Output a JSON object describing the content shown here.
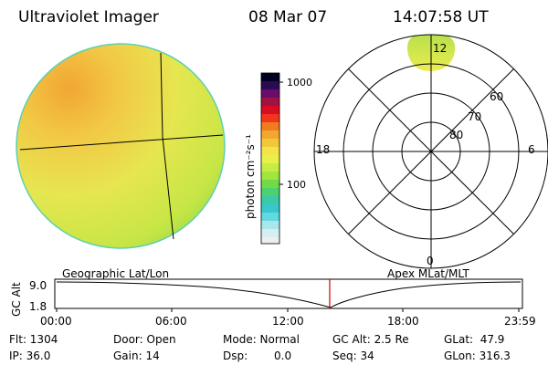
{
  "header": {
    "title": "Ultraviolet Imager",
    "date": "08 Mar 07",
    "time": "14:07:58 UT"
  },
  "colorbar": {
    "label": "photon cm⁻²s⁻¹",
    "tick_top": "1000",
    "tick_bottom": "100"
  },
  "polar": {
    "ring_labels": [
      "60",
      "70",
      "80"
    ],
    "mlt_labels": {
      "top": "12",
      "left": "18",
      "right": "6",
      "bottom": "0"
    }
  },
  "orbit": {
    "axis_label": "GC Alt",
    "y_top": "9.0",
    "y_bottom": "1.8",
    "left_caption": "Geographic Lat/Lon",
    "right_caption": "Apex MLat/MLT",
    "time_ticks": [
      "00:00",
      "06:00",
      "12:00",
      "18:00",
      "23:59"
    ],
    "current_marker_color": "#cc0000"
  },
  "info": {
    "flt": "Flt: 1304",
    "ip": "IP: 36.0",
    "door": "Door: Open",
    "gain": "Gain: 14",
    "mode": "Mode: Normal",
    "dsp_label": "Dsp:",
    "dsp_value": "0.0",
    "gc_alt": "GC Alt: 2.5 Re",
    "seq": "Seq: 34",
    "glat": "GLat:  47.9",
    "glon": "GLon: 316.3"
  }
}
